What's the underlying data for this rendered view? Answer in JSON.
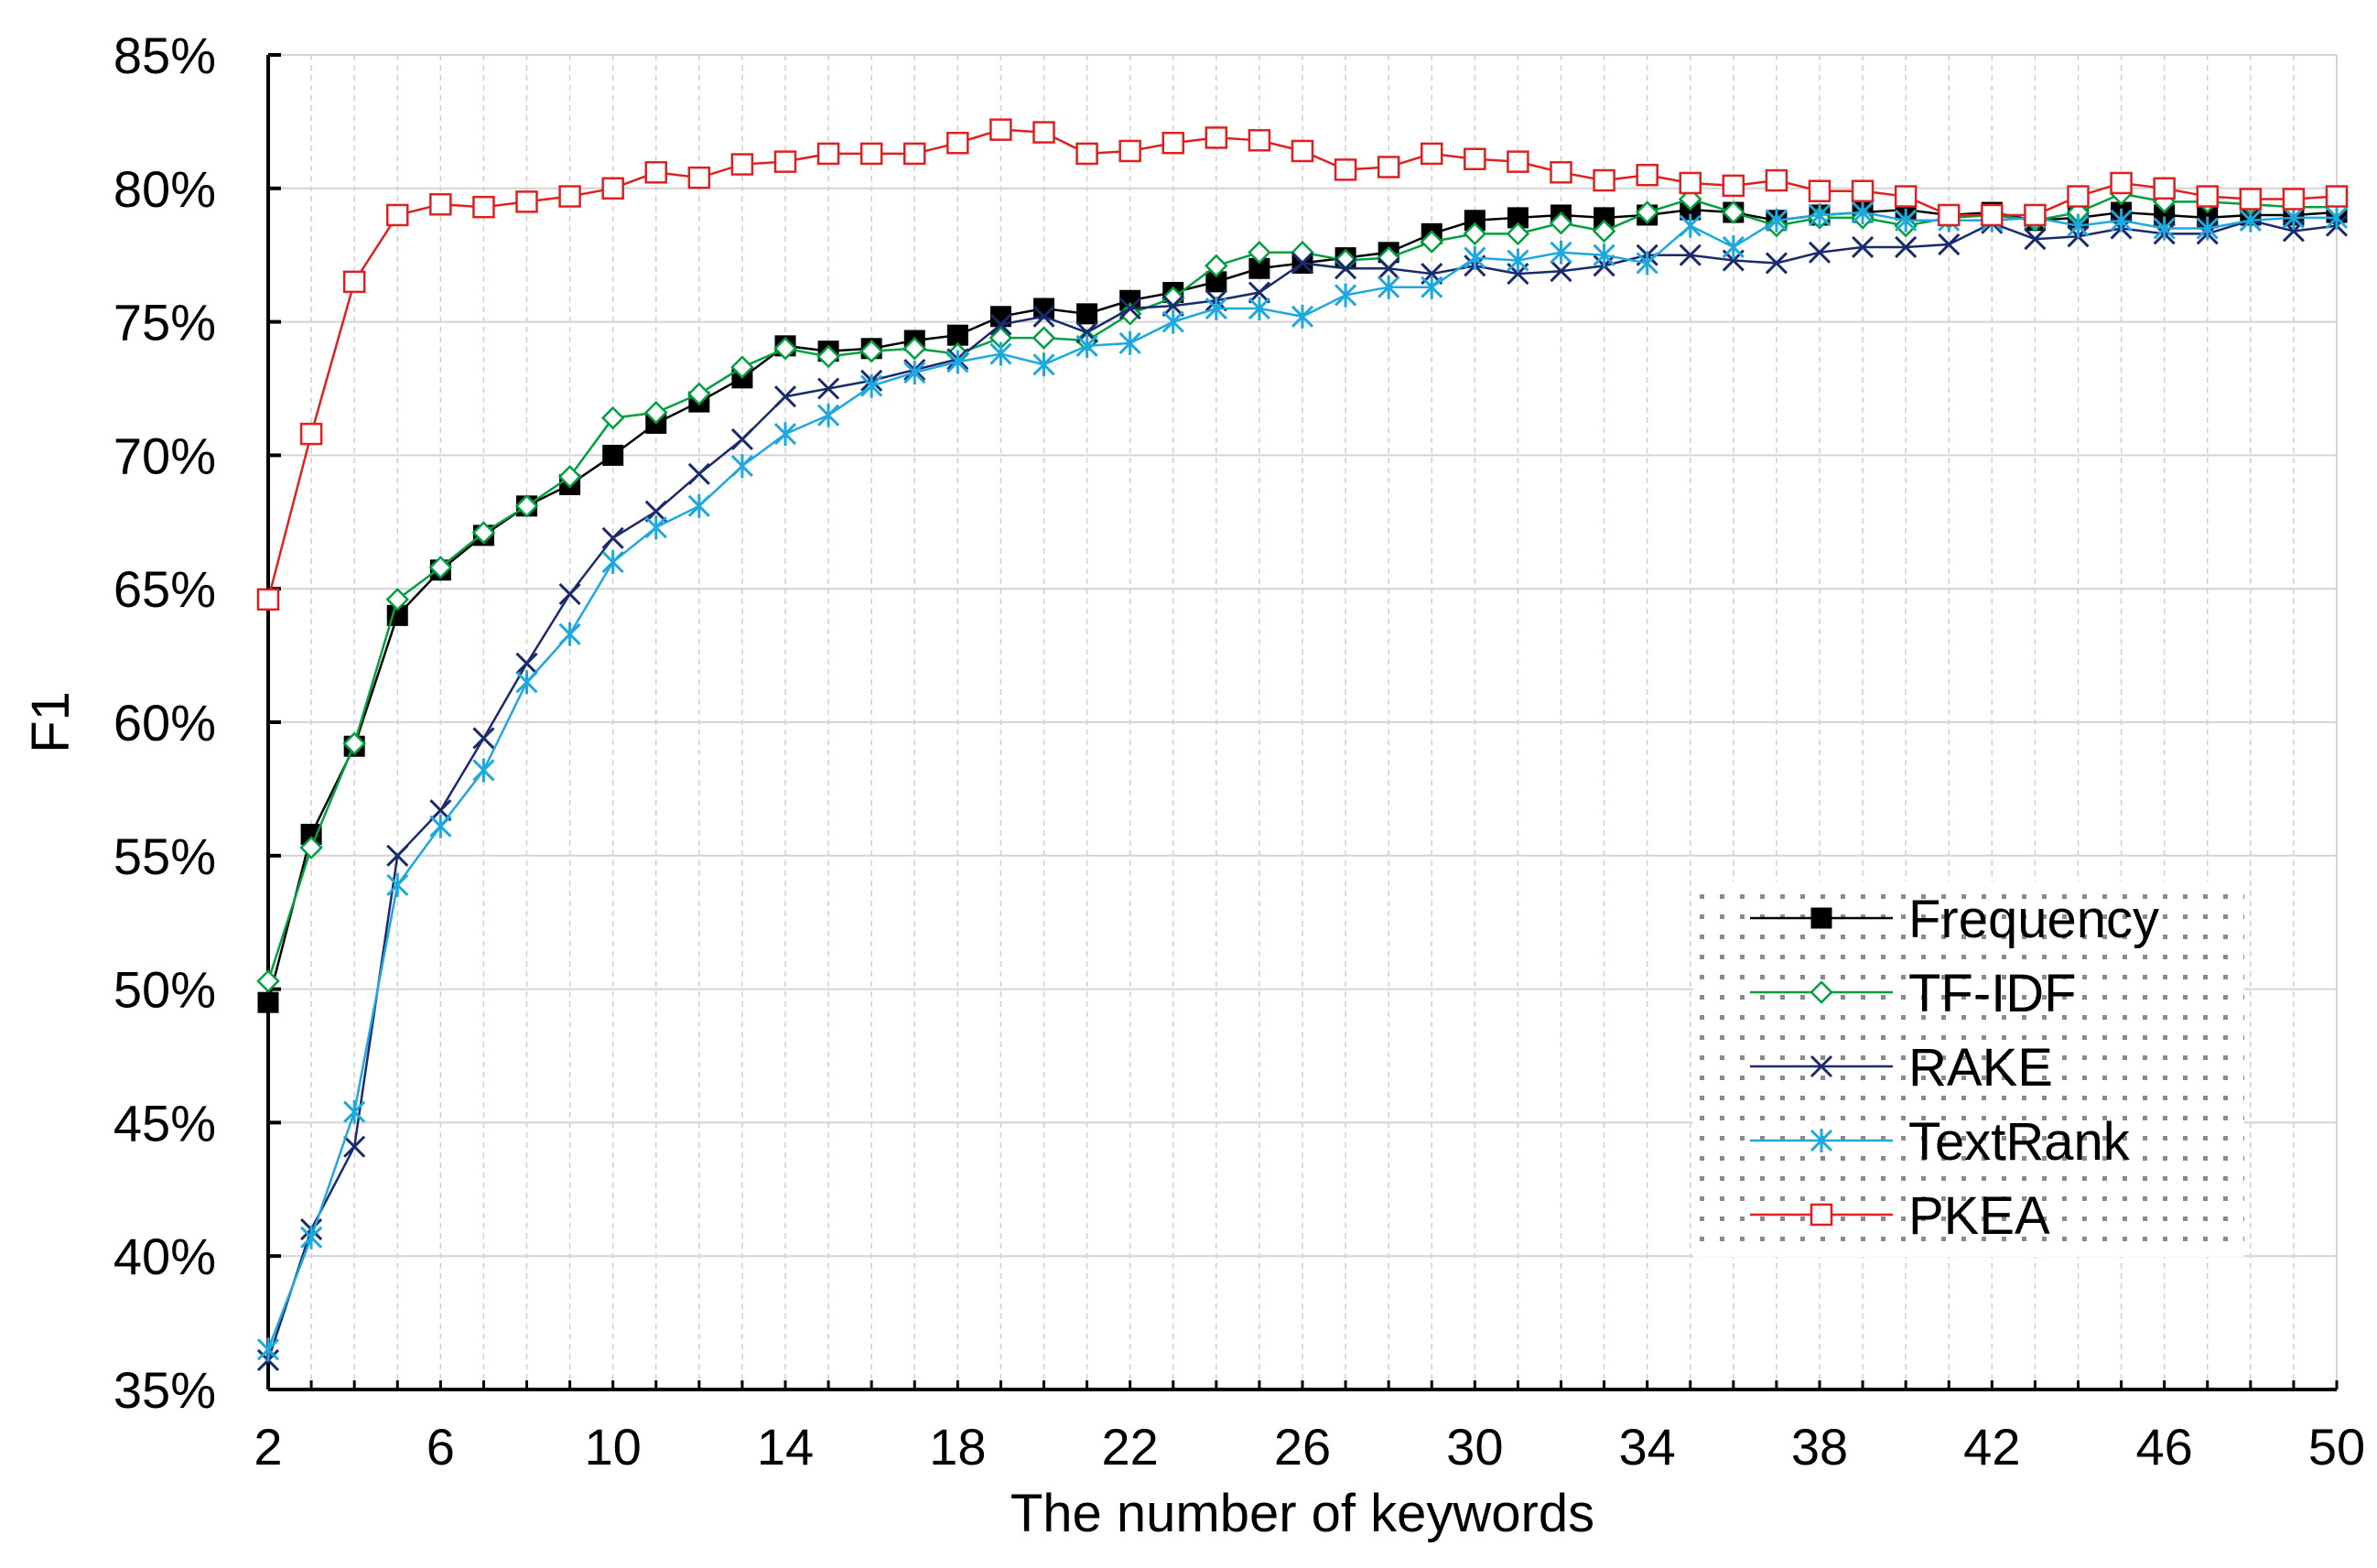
{
  "chart_data": {
    "type": "line",
    "title": "",
    "xlabel": "The number of keywords",
    "ylabel": "F1",
    "xlim": [
      2,
      50
    ],
    "ylim": [
      35,
      85
    ],
    "x_ticks": [
      2,
      6,
      10,
      14,
      18,
      22,
      26,
      30,
      34,
      38,
      42,
      46,
      50
    ],
    "y_ticks": [
      35,
      40,
      45,
      50,
      55,
      60,
      65,
      70,
      75,
      80,
      85
    ],
    "y_tick_labels": [
      "35%",
      "40%",
      "45%",
      "50%",
      "55%",
      "60%",
      "65%",
      "70%",
      "75%",
      "80%",
      "85%"
    ],
    "x_tick_labels": [
      "2",
      "6",
      "10",
      "14",
      "18",
      "22",
      "26",
      "30",
      "34",
      "38",
      "42",
      "46",
      "50"
    ],
    "grid": true,
    "legend_position": "bottom-right",
    "x": [
      2,
      3,
      4,
      5,
      6,
      7,
      8,
      9,
      10,
      11,
      12,
      13,
      14,
      15,
      16,
      17,
      18,
      19,
      20,
      21,
      22,
      23,
      24,
      25,
      26,
      27,
      28,
      29,
      30,
      31,
      32,
      33,
      34,
      35,
      36,
      37,
      38,
      39,
      40,
      41,
      42,
      43,
      44,
      45,
      46,
      47,
      48,
      49,
      50
    ],
    "series": [
      {
        "name": "Frequency",
        "color": "#000000",
        "marker": "filled-square",
        "values": [
          49.5,
          55.8,
          59.1,
          64.0,
          65.7,
          67.0,
          68.1,
          68.9,
          70.0,
          71.2,
          72.0,
          72.9,
          74.1,
          73.9,
          74.0,
          74.3,
          74.5,
          75.2,
          75.5,
          75.3,
          75.8,
          76.1,
          76.5,
          77.0,
          77.2,
          77.4,
          77.6,
          78.3,
          78.8,
          78.9,
          79.0,
          78.9,
          79.0,
          79.2,
          79.1,
          78.8,
          79.0,
          79.1,
          79.2,
          79.0,
          79.1,
          78.8,
          78.9,
          79.1,
          79.0,
          78.9,
          79.0,
          79.0,
          79.1
        ]
      },
      {
        "name": "TF-IDF",
        "color": "#00a040",
        "marker": "diamond",
        "values": [
          50.3,
          55.3,
          59.2,
          64.6,
          65.8,
          67.1,
          68.1,
          69.2,
          71.4,
          71.6,
          72.3,
          73.3,
          74.0,
          73.7,
          73.9,
          74.0,
          73.8,
          74.4,
          74.4,
          74.3,
          75.3,
          75.9,
          77.1,
          77.6,
          77.6,
          77.3,
          77.4,
          78.0,
          78.3,
          78.3,
          78.7,
          78.4,
          79.1,
          79.6,
          79.1,
          78.6,
          78.9,
          78.9,
          78.6,
          78.9,
          79.0,
          78.8,
          79.1,
          79.8,
          79.5,
          79.5,
          79.4,
          79.3,
          79.3
        ]
      },
      {
        "name": "RAKE",
        "color": "#1a2a6c",
        "marker": "x",
        "values": [
          36.1,
          41.0,
          44.1,
          55.0,
          56.7,
          59.4,
          62.2,
          64.8,
          66.9,
          67.9,
          69.3,
          70.6,
          72.2,
          72.5,
          72.8,
          73.2,
          73.6,
          74.9,
          75.2,
          74.6,
          75.5,
          75.6,
          75.8,
          76.1,
          77.2,
          77.0,
          77.0,
          76.8,
          77.1,
          76.8,
          76.9,
          77.1,
          77.5,
          77.5,
          77.3,
          77.2,
          77.6,
          77.8,
          77.8,
          77.9,
          78.7,
          78.1,
          78.2,
          78.5,
          78.3,
          78.3,
          78.8,
          78.4,
          78.6
        ]
      },
      {
        "name": "TextRank",
        "color": "#1ea8e0",
        "marker": "asterisk",
        "values": [
          36.5,
          40.7,
          45.4,
          53.9,
          56.1,
          58.2,
          61.5,
          63.3,
          66.0,
          67.3,
          68.1,
          69.6,
          70.8,
          71.5,
          72.6,
          73.1,
          73.5,
          73.8,
          73.4,
          74.1,
          74.2,
          75.0,
          75.5,
          75.5,
          75.2,
          76.0,
          76.3,
          76.3,
          77.4,
          77.3,
          77.6,
          77.5,
          77.2,
          78.6,
          77.8,
          78.8,
          79.0,
          79.1,
          78.8,
          78.8,
          78.8,
          78.9,
          78.6,
          78.8,
          78.5,
          78.5,
          78.8,
          78.9,
          78.9
        ]
      },
      {
        "name": "PKEA",
        "color": "#e02020",
        "marker": "open-square",
        "values": [
          64.6,
          70.8,
          76.5,
          79.0,
          79.4,
          79.3,
          79.5,
          79.7,
          80.0,
          80.6,
          80.4,
          80.9,
          81.0,
          81.3,
          81.3,
          81.3,
          81.7,
          82.2,
          82.1,
          81.3,
          81.4,
          81.7,
          81.9,
          81.8,
          81.4,
          80.7,
          80.8,
          81.3,
          81.1,
          81.0,
          80.6,
          80.3,
          80.5,
          80.2,
          80.1,
          80.3,
          79.9,
          79.9,
          79.7,
          79.0,
          79.0,
          79.0,
          79.7,
          80.2,
          80.0,
          79.7,
          79.6,
          79.6,
          79.7
        ]
      }
    ]
  }
}
